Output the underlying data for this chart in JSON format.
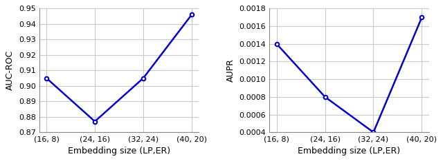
{
  "categories": [
    "(16, 8)",
    "(24, 16)",
    "(32, 24)",
    "(40, 20)"
  ],
  "auc_roc": [
    0.905,
    0.877,
    0.905,
    0.946
  ],
  "aupr": [
    0.0014,
    0.0008,
    0.0004,
    0.0017
  ],
  "auc_roc_ylim": [
    0.87,
    0.95
  ],
  "auc_roc_yticks": [
    0.87,
    0.88,
    0.89,
    0.9,
    0.91,
    0.92,
    0.93,
    0.94,
    0.95
  ],
  "aupr_ylim": [
    0.0004,
    0.0018
  ],
  "aupr_yticks": [
    0.0004,
    0.0006,
    0.0008,
    0.001,
    0.0012,
    0.0014,
    0.0016,
    0.0018
  ],
  "xlabel": "Embedding size (LP,ER)",
  "ylabel_left": "AUC-ROC",
  "ylabel_right": "AUPR",
  "line_color": "#0000cc",
  "marker": "o",
  "marker_size": 4,
  "line_width": 1.8,
  "grid_color": "#c8c8c8",
  "background_color": "#ffffff"
}
